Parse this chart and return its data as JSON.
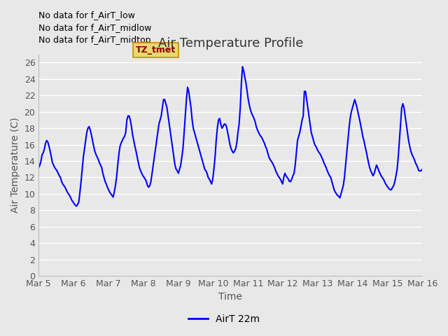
{
  "title": "Air Temperature Profile",
  "xlabel": "Time",
  "ylabel": "Air Temperature (C)",
  "line_color": "blue",
  "line_width": 1.5,
  "background_color": "#e8e8e8",
  "ylim": [
    0,
    27
  ],
  "yticks": [
    0,
    2,
    4,
    6,
    8,
    10,
    12,
    14,
    16,
    18,
    20,
    22,
    24,
    26
  ],
  "legend_label": "AirT 22m",
  "no_data_texts": [
    "No data for f_AirT_low",
    "No data for f_AirT_midlow",
    "No data for f_AirT_midtop"
  ],
  "tz_label": "TZ_tmet",
  "x_tick_labels": [
    "Mar 5",
    "Mar 6",
    "Mar 7",
    "Mar 8",
    "Mar 9",
    "Mar 10",
    "Mar 11",
    "Mar 12",
    "Mar 13",
    "Mar 14",
    "Mar 15",
    "Mar 16"
  ],
  "x_tick_positions": [
    0,
    24,
    48,
    72,
    96,
    120,
    144,
    168,
    192,
    216,
    240,
    264
  ],
  "y_data": [
    13.2,
    13.5,
    14.0,
    14.8,
    15.0,
    15.5,
    16.2,
    16.5,
    16.3,
    15.8,
    15.2,
    14.5,
    13.8,
    13.5,
    13.2,
    13.0,
    12.8,
    12.5,
    12.2,
    12.0,
    11.5,
    11.2,
    11.0,
    10.8,
    10.5,
    10.2,
    10.0,
    9.8,
    9.5,
    9.2,
    9.0,
    8.8,
    8.6,
    8.5,
    8.7,
    9.0,
    10.2,
    11.5,
    13.0,
    14.5,
    15.5,
    16.5,
    17.5,
    18.0,
    18.2,
    17.8,
    17.2,
    16.5,
    15.8,
    15.2,
    14.8,
    14.5,
    14.2,
    13.8,
    13.5,
    13.2,
    12.5,
    12.0,
    11.5,
    11.2,
    10.8,
    10.5,
    10.2,
    10.0,
    9.8,
    9.6,
    10.2,
    11.0,
    12.0,
    13.5,
    14.8,
    15.8,
    16.2,
    16.5,
    16.8,
    17.0,
    17.5,
    19.0,
    19.5,
    19.5,
    19.0,
    18.2,
    17.2,
    16.5,
    15.8,
    15.2,
    14.5,
    13.8,
    13.2,
    12.8,
    12.5,
    12.2,
    12.0,
    11.8,
    11.5,
    11.0,
    10.8,
    11.0,
    11.5,
    12.5,
    13.5,
    14.5,
    15.5,
    16.5,
    17.5,
    18.5,
    19.0,
    19.5,
    20.5,
    21.5,
    21.5,
    21.0,
    20.5,
    19.5,
    18.5,
    17.5,
    16.5,
    15.5,
    14.5,
    13.5,
    13.0,
    12.8,
    12.5,
    13.0,
    13.5,
    14.5,
    15.5,
    17.5,
    19.5,
    21.5,
    23.0,
    22.5,
    21.5,
    20.5,
    19.0,
    18.0,
    17.5,
    17.0,
    16.5,
    16.0,
    15.5,
    15.0,
    14.5,
    14.0,
    13.5,
    13.0,
    12.8,
    12.5,
    12.0,
    11.8,
    11.5,
    11.2,
    11.8,
    13.0,
    14.5,
    16.5,
    18.0,
    19.0,
    19.2,
    18.5,
    18.0,
    18.2,
    18.5,
    18.5,
    18.2,
    17.5,
    16.8,
    16.0,
    15.5,
    15.2,
    15.0,
    15.2,
    15.5,
    16.2,
    17.5,
    18.5,
    20.5,
    23.5,
    25.5,
    25.0,
    24.2,
    23.5,
    22.5,
    21.5,
    20.8,
    20.2,
    19.8,
    19.5,
    19.2,
    18.8,
    18.2,
    17.8,
    17.5,
    17.2,
    17.0,
    16.8,
    16.5,
    16.2,
    15.8,
    15.5,
    15.0,
    14.5,
    14.2,
    14.0,
    13.8,
    13.5,
    13.2,
    12.8,
    12.5,
    12.2,
    12.0,
    11.8,
    11.5,
    11.2,
    12.0,
    12.5,
    12.2,
    12.0,
    11.8,
    11.5,
    11.5,
    11.8,
    12.2,
    12.5,
    13.5,
    15.0,
    16.5,
    17.0,
    17.5,
    18.2,
    19.0,
    19.5,
    22.5,
    22.5,
    21.5,
    20.5,
    19.5,
    18.5,
    17.5,
    17.0,
    16.5,
    16.0,
    15.8,
    15.5,
    15.2,
    15.0,
    14.8,
    14.5,
    14.2,
    13.8,
    13.5,
    13.2,
    12.8,
    12.5,
    12.2,
    12.0,
    11.5,
    11.0,
    10.5,
    10.2,
    10.0,
    9.8,
    9.7,
    9.5,
    10.0,
    10.5,
    11.0,
    12.0,
    13.5,
    15.0,
    16.5,
    18.0,
    19.2,
    20.0,
    20.5,
    21.0,
    21.5,
    21.0,
    20.5,
    19.8,
    19.2,
    18.5,
    17.8,
    17.0,
    16.5,
    15.8,
    15.2,
    14.5,
    13.8,
    13.2,
    12.8,
    12.5,
    12.2,
    12.5,
    13.0,
    13.5,
    13.2,
    12.8,
    12.5,
    12.2,
    12.0,
    11.8,
    11.5,
    11.2,
    11.0,
    10.8,
    10.6,
    10.5,
    10.5,
    10.8,
    11.0,
    11.5,
    12.2,
    13.0,
    14.5,
    16.5,
    18.5,
    20.5,
    21.0,
    20.5,
    19.5,
    18.5,
    17.5,
    16.5,
    15.8,
    15.2,
    14.8,
    14.5,
    14.2,
    13.8,
    13.5,
    13.2,
    12.8,
    12.8,
    12.8,
    13.0
  ]
}
